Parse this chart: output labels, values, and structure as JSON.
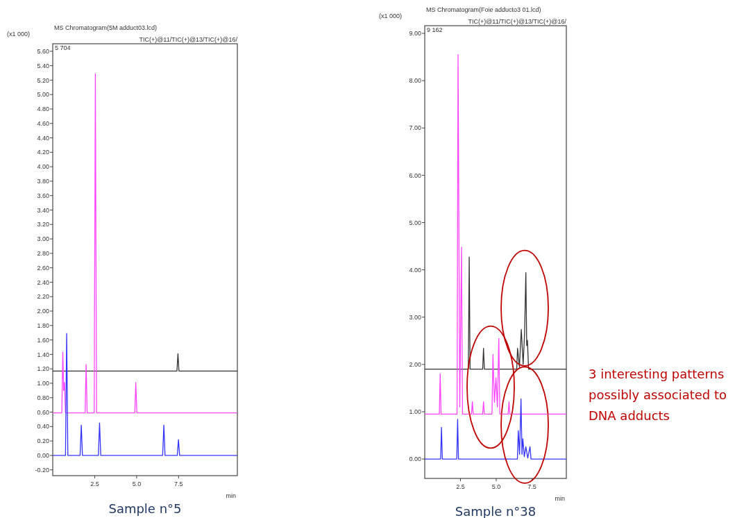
{
  "chart_data": [
    {
      "type": "line",
      "title": "MS Chromatogram(5M  adduct03.lcd)",
      "subtitle": "TIC(+)@11/TIC(+)@13/TIC(+)@16/",
      "ylabel": "(x1 000)",
      "xlabel": "min",
      "annotations": [
        "5 704",
        "Sample n°5"
      ],
      "xlim": [
        0,
        11
      ],
      "ylim": [
        -0.28,
        5.704
      ],
      "xticks": [
        {
          "value": 2.5,
          "label": "2.5"
        },
        {
          "value": 5,
          "label": "5.0"
        },
        {
          "value": 7.5,
          "label": "7.5"
        }
      ],
      "yticks": [
        {
          "value": -0.2,
          "label": "-0.20"
        },
        {
          "value": 0,
          "label": "0.00"
        },
        {
          "value": 0.2,
          "label": "0.20"
        },
        {
          "value": 0.4,
          "label": "0.40"
        },
        {
          "value": 0.6,
          "label": "0.60"
        },
        {
          "value": 0.8,
          "label": "0.80"
        },
        {
          "value": 1,
          "label": "1.00"
        },
        {
          "value": 1.2,
          "label": "1.20"
        },
        {
          "value": 1.4,
          "label": "1.40"
        },
        {
          "value": 1.6,
          "label": "1.60"
        },
        {
          "value": 1.8,
          "label": "1.80"
        },
        {
          "value": 2,
          "label": "2.00"
        },
        {
          "value": 2.2,
          "label": "2.20"
        },
        {
          "value": 2.4,
          "label": "2.40"
        },
        {
          "value": 2.6,
          "label": "2.60"
        },
        {
          "value": 2.8,
          "label": "2.80"
        },
        {
          "value": 3,
          "label": "3.00"
        },
        {
          "value": 3.2,
          "label": "3.20"
        },
        {
          "value": 3.4,
          "label": "3.40"
        },
        {
          "value": 3.6,
          "label": "3.60"
        },
        {
          "value": 3.8,
          "label": "3.80"
        },
        {
          "value": 4,
          "label": "4.00"
        },
        {
          "value": 4.2,
          "label": "4.20"
        },
        {
          "value": 4.4,
          "label": "4.40"
        },
        {
          "value": 4.6,
          "label": "4.60"
        },
        {
          "value": 4.8,
          "label": "4.80"
        },
        {
          "value": 5,
          "label": "5.00"
        },
        {
          "value": 5.2,
          "label": "5.20"
        },
        {
          "value": 5.4,
          "label": "5.40"
        },
        {
          "value": 5.6,
          "label": "5.60"
        }
      ],
      "grid": false,
      "series": [
        {
          "color": "#333333",
          "x": [
            0,
            7.4,
            7.46,
            7.52,
            11
          ],
          "values": [
            1.17,
            1.17,
            1.41,
            1.17,
            1.17
          ]
        },
        {
          "color": "#ff44ff",
          "x": [
            0,
            0.54,
            0.6,
            0.65,
            0.7,
            0.76,
            1.93,
            1.99,
            2.05,
            2.47,
            2.54,
            2.61,
            4.89,
            4.95,
            5.01,
            11
          ],
          "values": [
            0.59,
            0.59,
            1.43,
            0.9,
            1.01,
            0.59,
            0.59,
            1.26,
            0.59,
            0.59,
            5.29,
            0.59,
            0.59,
            1.01,
            0.59,
            0.59
          ]
        },
        {
          "color": "#3333ff",
          "x": [
            0,
            0.76,
            0.83,
            0.9,
            1.63,
            1.7,
            1.77,
            2.72,
            2.79,
            2.86,
            6.55,
            6.62,
            6.69,
            7.42,
            7.49,
            7.56,
            11
          ],
          "values": [
            0,
            0,
            1.69,
            0,
            0,
            0.42,
            0,
            0,
            0.45,
            0,
            0,
            0.42,
            0,
            0,
            0.22,
            0,
            0
          ]
        }
      ]
    },
    {
      "type": "line",
      "title": "MS Chromatogram(Foie  adducto3  01.lcd)",
      "subtitle": "TIC(+)@11/TIC(+)@13/TIC(+)@16/",
      "ylabel": "(x1 000)",
      "xlabel": "min",
      "annotations": [
        "9 162",
        "Sample n°38",
        "3 interesting patterns possibly associated to DNA adducts"
      ],
      "xlim": [
        0,
        9.9
      ],
      "ylim": [
        -0.41,
        9.162
      ],
      "xticks": [
        {
          "value": 2.5,
          "label": "2.5"
        },
        {
          "value": 5,
          "label": "5.0"
        },
        {
          "value": 7.5,
          "label": "7.5"
        }
      ],
      "yticks": [
        {
          "value": 0,
          "label": "0.00"
        },
        {
          "value": 1,
          "label": "1.00"
        },
        {
          "value": 2,
          "label": "2.00"
        },
        {
          "value": 3,
          "label": "3.00"
        },
        {
          "value": 4,
          "label": "4.00"
        },
        {
          "value": 5,
          "label": "5.00"
        },
        {
          "value": 6,
          "label": "6.00"
        },
        {
          "value": 7,
          "label": "7.00"
        },
        {
          "value": 8,
          "label": "8.00"
        },
        {
          "value": 9,
          "label": "9.00"
        }
      ],
      "grid": false,
      "series": [
        {
          "color": "#333333",
          "x": [
            0,
            3.05,
            3.11,
            3.17,
            4.05,
            4.11,
            4.17,
            6.43,
            6.49,
            6.62,
            6.75,
            6.88,
            6.98,
            7.07,
            7.13,
            7.18,
            7.26,
            9.9
          ],
          "values": [
            1.9,
            1.9,
            4.27,
            1.9,
            1.9,
            2.34,
            1.9,
            1.9,
            2.34,
            1.95,
            2.74,
            2.0,
            2.65,
            3.94,
            2.4,
            2.51,
            1.9,
            1.9
          ]
        },
        {
          "color": "#ff44ff",
          "x": [
            0,
            1.02,
            1.08,
            1.14,
            2.26,
            2.33,
            2.45,
            2.57,
            2.64,
            3.27,
            3.33,
            3.39,
            4.05,
            4.11,
            4.17,
            4.7,
            4.77,
            4.87,
            4.98,
            5.08,
            5.18,
            5.25,
            5.83,
            5.89,
            5.95,
            9.9
          ],
          "values": [
            0.95,
            0.95,
            1.8,
            0.95,
            0.95,
            8.55,
            1.1,
            4.48,
            0.95,
            0.95,
            1.21,
            0.95,
            0.95,
            1.21,
            0.95,
            0.95,
            2.21,
            1.2,
            1.72,
            1.1,
            2.55,
            0.95,
            0.95,
            1.21,
            0.95,
            0.95
          ]
        },
        {
          "color": "#3333ff",
          "x": [
            0,
            1.11,
            1.17,
            1.23,
            2.24,
            2.3,
            2.36,
            6.48,
            6.54,
            6.63,
            6.73,
            6.8,
            6.86,
            6.96,
            7.07,
            7.2,
            7.36,
            7.43,
            9.9
          ],
          "values": [
            0,
            0,
            0.67,
            0,
            0,
            0.84,
            0,
            0,
            0.6,
            0.1,
            1.27,
            0.1,
            0.43,
            0.05,
            0.26,
            0.02,
            0.26,
            0,
            0
          ]
        }
      ]
    }
  ]
}
